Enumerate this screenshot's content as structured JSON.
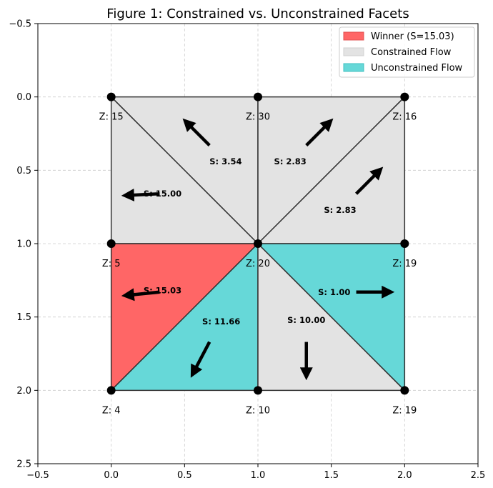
{
  "chart_data": {
    "type": "triangle-mesh",
    "title": "Figure 1: Constrained vs. Unconstrained Facets",
    "xlim": [
      -0.5,
      2.5
    ],
    "ylim": [
      2.5,
      -0.5
    ],
    "x_ticks": [
      "−0.5",
      "0.0",
      "0.5",
      "1.0",
      "1.5",
      "2.0",
      "2.5"
    ],
    "x_tick_values": [
      -0.5,
      0.0,
      0.5,
      1.0,
      1.5,
      2.0,
      2.5
    ],
    "y_ticks": [
      "−0.5",
      "0.0",
      "0.5",
      "1.0",
      "1.5",
      "2.0",
      "2.5"
    ],
    "y_tick_values": [
      -0.5,
      0.0,
      0.5,
      1.0,
      1.5,
      2.0,
      2.5
    ],
    "grid": true,
    "colors": {
      "winner": "#ff6666",
      "constrained": "#e3e3e3",
      "unconstrained": "#66d8d8",
      "edge": "#333333",
      "grid": "#cccccc"
    },
    "legend": [
      {
        "label": "Winner (S=15.03)",
        "category": "winner"
      },
      {
        "label": "Constrained Flow",
        "category": "constrained"
      },
      {
        "label": "Unconstrained Flow",
        "category": "unconstrained"
      }
    ],
    "nodes": [
      {
        "x": 0,
        "y": 0,
        "label": "Z: 15"
      },
      {
        "x": 1,
        "y": 0,
        "label": "Z: 30"
      },
      {
        "x": 2,
        "y": 0,
        "label": "Z: 16"
      },
      {
        "x": 0,
        "y": 1,
        "label": "Z: 5"
      },
      {
        "x": 1,
        "y": 1,
        "label": "Z: 20"
      },
      {
        "x": 2,
        "y": 1,
        "label": "Z: 19"
      },
      {
        "x": 0,
        "y": 2,
        "label": "Z: 4"
      },
      {
        "x": 1,
        "y": 2,
        "label": "Z: 10"
      },
      {
        "x": 2,
        "y": 2,
        "label": "Z: 19"
      }
    ],
    "facets": [
      {
        "vertices": [
          [
            0,
            0
          ],
          [
            1,
            0
          ],
          [
            1,
            1
          ]
        ],
        "category": "constrained",
        "slope_label": "S: 3.54",
        "label_pos": [
          0.78,
          0.44
        ],
        "arrow": {
          "from": [
            0.67,
            0.33
          ],
          "to": [
            0.53,
            0.19
          ]
        }
      },
      {
        "vertices": [
          [
            0,
            0
          ],
          [
            0,
            1
          ],
          [
            1,
            1
          ]
        ],
        "category": "constrained",
        "slope_label": "S: 15.00",
        "label_pos": [
          0.35,
          0.66
        ],
        "arrow": {
          "from": [
            0.33,
            0.66
          ],
          "to": [
            0.13,
            0.67
          ]
        }
      },
      {
        "vertices": [
          [
            1,
            0
          ],
          [
            2,
            0
          ],
          [
            1,
            1
          ]
        ],
        "category": "constrained",
        "slope_label": "S: 2.83",
        "label_pos": [
          1.22,
          0.44
        ],
        "arrow": {
          "from": [
            1.33,
            0.33
          ],
          "to": [
            1.47,
            0.19
          ]
        }
      },
      {
        "vertices": [
          [
            2,
            0
          ],
          [
            2,
            1
          ],
          [
            1,
            1
          ]
        ],
        "category": "constrained",
        "slope_label": "S: 2.83",
        "label_pos": [
          1.56,
          0.77
        ],
        "arrow": {
          "from": [
            1.67,
            0.66
          ],
          "to": [
            1.81,
            0.52
          ]
        }
      },
      {
        "vertices": [
          [
            0,
            1
          ],
          [
            1,
            1
          ],
          [
            0,
            2
          ]
        ],
        "category": "winner",
        "slope_label": "S: 15.03",
        "label_pos": [
          0.35,
          1.32
        ],
        "arrow": {
          "from": [
            0.33,
            1.33
          ],
          "to": [
            0.13,
            1.35
          ]
        }
      },
      {
        "vertices": [
          [
            1,
            1
          ],
          [
            1,
            2
          ],
          [
            0,
            2
          ]
        ],
        "category": "unconstrained",
        "slope_label": "S: 11.66",
        "label_pos": [
          0.75,
          1.53
        ],
        "arrow": {
          "from": [
            0.67,
            1.67
          ],
          "to": [
            0.57,
            1.86
          ]
        }
      },
      {
        "vertices": [
          [
            1,
            1
          ],
          [
            2,
            2
          ],
          [
            1,
            2
          ]
        ],
        "category": "constrained",
        "slope_label": "S: 10.00",
        "label_pos": [
          1.33,
          1.52
        ],
        "arrow": {
          "from": [
            1.33,
            1.67
          ],
          "to": [
            1.33,
            1.87
          ]
        }
      },
      {
        "vertices": [
          [
            1,
            1
          ],
          [
            2,
            1
          ],
          [
            2,
            2
          ]
        ],
        "category": "unconstrained",
        "slope_label": "S: 1.00",
        "label_pos": [
          1.52,
          1.33
        ],
        "arrow": {
          "from": [
            1.67,
            1.33
          ],
          "to": [
            1.87,
            1.33
          ]
        }
      }
    ]
  }
}
